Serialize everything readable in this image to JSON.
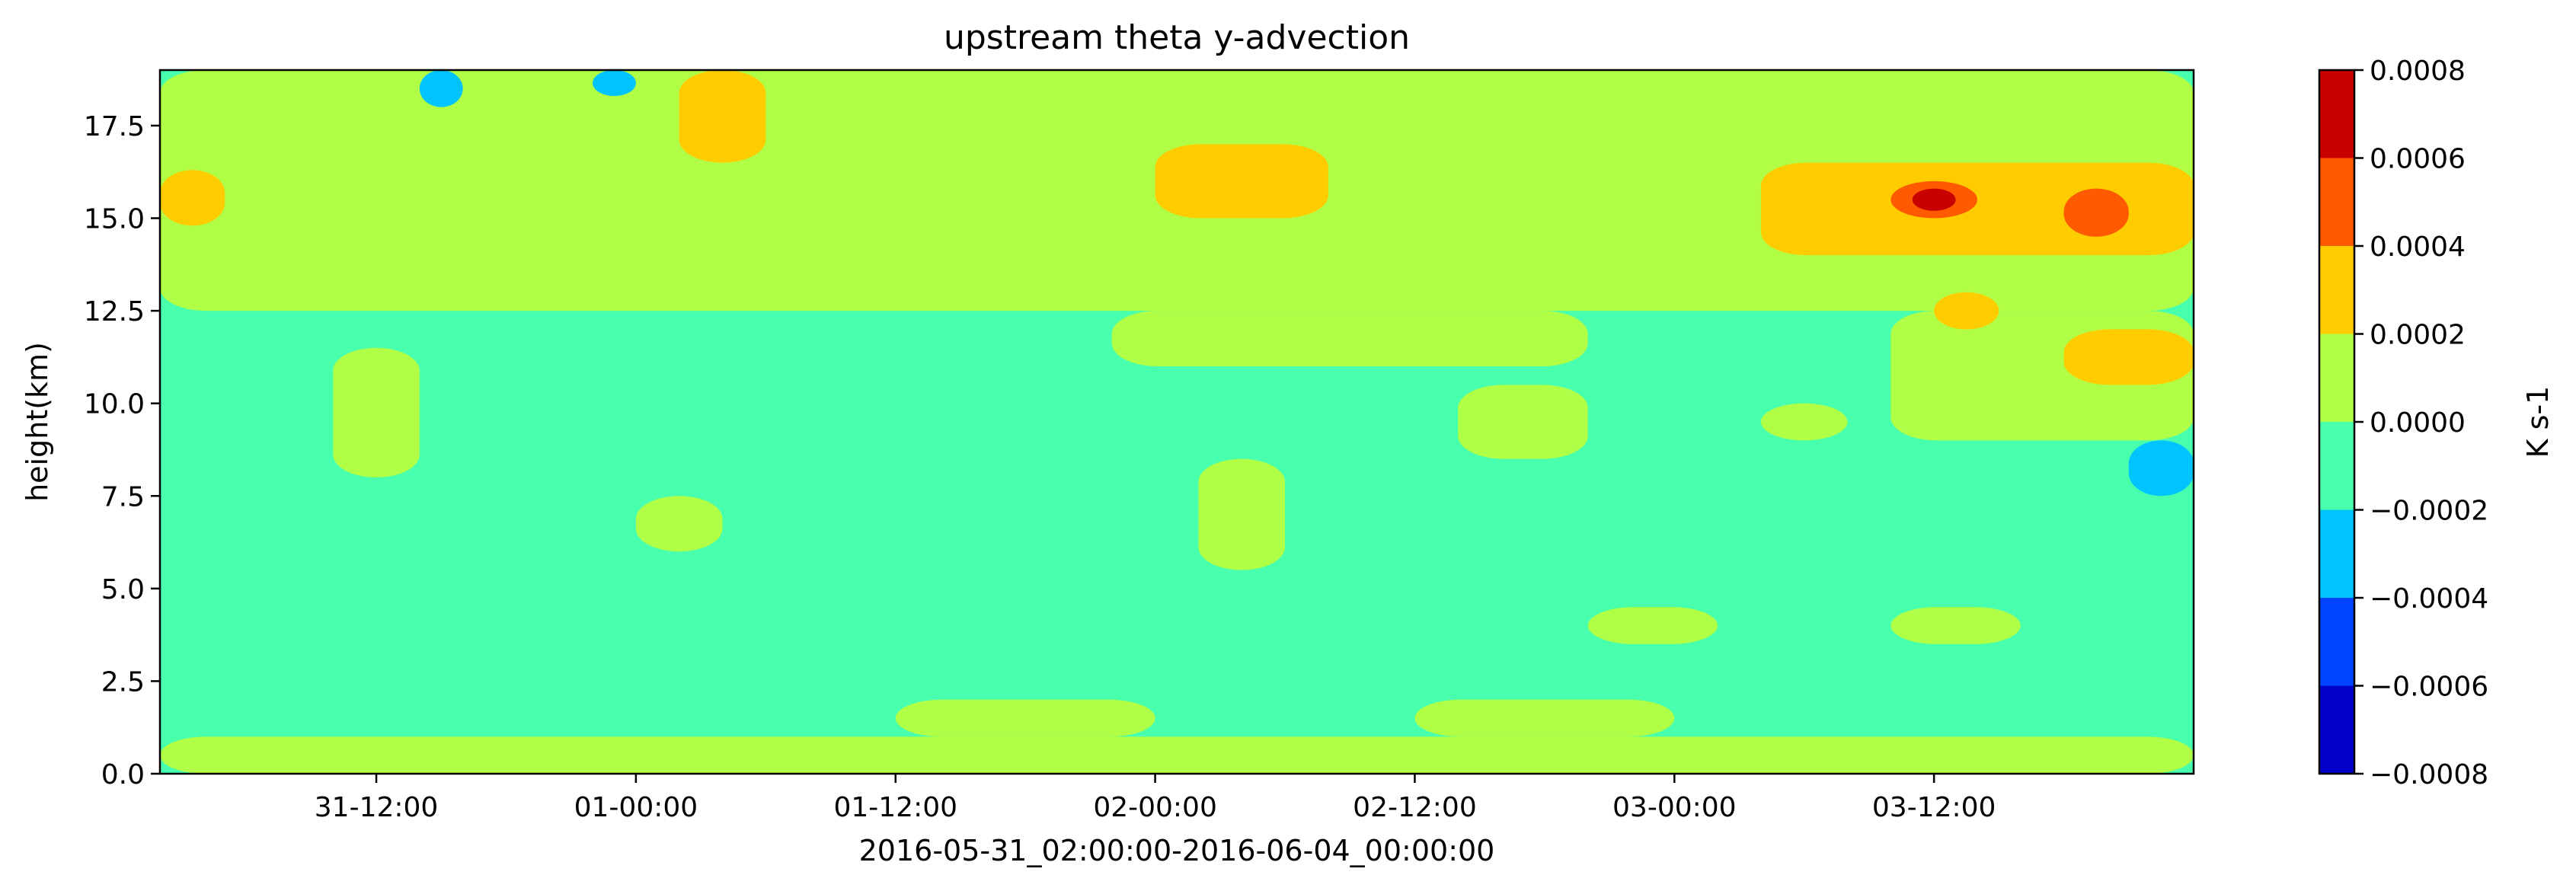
{
  "chart_data": {
    "type": "heatmap",
    "subtype": "filled-contour",
    "title": "upstream theta y-advection",
    "xlabel": "2016-05-31_02:00:00-2016-06-04_00:00:00",
    "ylabel": "height(km)",
    "x_range": [
      "2016-05-31 02:00",
      "2016-06-04 00:00"
    ],
    "ylim": [
      0.0,
      19.0
    ],
    "x_ticks": [
      "31-12:00",
      "01-00:00",
      "01-12:00",
      "02-00:00",
      "02-12:00",
      "03-00:00",
      "03-12:00"
    ],
    "x_tick_times": [
      "2016-05-31 12:00",
      "2016-06-01 00:00",
      "2016-06-01 12:00",
      "2016-06-02 00:00",
      "2016-06-02 12:00",
      "2016-06-03 00:00",
      "2016-06-03 12:00"
    ],
    "y_ticks": [
      "0.0",
      "2.5",
      "5.0",
      "7.5",
      "10.0",
      "12.5",
      "15.0",
      "17.5"
    ],
    "y_tick_values": [
      0.0,
      2.5,
      5.0,
      7.5,
      10.0,
      12.5,
      15.0,
      17.5
    ],
    "colorbar": {
      "label": "K s-1",
      "range": [
        -0.0008,
        0.0008
      ],
      "levels": [
        -0.0008,
        -0.0006,
        -0.0004,
        -0.0002,
        0.0,
        0.0002,
        0.0004,
        0.0006,
        0.0008
      ],
      "tick_labels": [
        "−0.0008",
        "−0.0006",
        "−0.0004",
        "−0.0002",
        "0.0000",
        "0.0002",
        "0.0004",
        "0.0006",
        "0.0008"
      ],
      "colors": [
        "#0000c8",
        "#0044ff",
        "#00c4ff",
        "#48ffae",
        "#b0ff46",
        "#ffcc00",
        "#ff5a00",
        "#c80000"
      ]
    },
    "background_value_range": [
      -0.0002,
      0.0
    ],
    "regions": [
      {
        "t": [
          "2016-05-31 02:00",
          "2016-06-04 00:00"
        ],
        "z": [
          0.0,
          1.0
        ],
        "value": 0.0001
      },
      {
        "t": [
          "2016-05-31 02:00",
          "2016-06-04 00:00"
        ],
        "z": [
          12.5,
          19.0
        ],
        "value": 0.0001
      },
      {
        "t": [
          "2016-06-01 22:00",
          "2016-06-02 20:00"
        ],
        "z": [
          11.0,
          12.5
        ],
        "value": 0.0001
      },
      {
        "t": [
          "2016-06-03 10:00",
          "2016-06-04 00:00"
        ],
        "z": [
          9.0,
          12.5
        ],
        "value": 0.0001
      },
      {
        "t": [
          "2016-05-31 10:00",
          "2016-05-31 14:00"
        ],
        "z": [
          8.0,
          11.5
        ],
        "value": 0.0001
      },
      {
        "t": [
          "2016-06-01 00:00",
          "2016-06-01 04:00"
        ],
        "z": [
          6.0,
          7.5
        ],
        "value": 0.0001
      },
      {
        "t": [
          "2016-06-02 02:00",
          "2016-06-02 06:00"
        ],
        "z": [
          5.5,
          8.5
        ],
        "value": 0.0001
      },
      {
        "t": [
          "2016-06-02 14:00",
          "2016-06-02 20:00"
        ],
        "z": [
          8.5,
          10.5
        ],
        "value": 0.0001
      },
      {
        "t": [
          "2016-06-03 04:00",
          "2016-06-03 08:00"
        ],
        "z": [
          9.0,
          10.0
        ],
        "value": 0.0001
      },
      {
        "t": [
          "2016-06-03 10:00",
          "2016-06-03 16:00"
        ],
        "z": [
          3.5,
          4.5
        ],
        "value": 0.0001
      },
      {
        "t": [
          "2016-06-02 20:00",
          "2016-06-03 02:00"
        ],
        "z": [
          3.5,
          4.5
        ],
        "value": 0.0001
      },
      {
        "t": [
          "2016-06-01 12:00",
          "2016-06-02 00:00"
        ],
        "z": [
          1.0,
          2.0
        ],
        "value": 0.0001
      },
      {
        "t": [
          "2016-06-02 12:00",
          "2016-06-03 00:00"
        ],
        "z": [
          1.0,
          2.0
        ],
        "value": 0.0001
      },
      {
        "t": [
          "2016-05-31 02:00",
          "2016-05-31 05:00"
        ],
        "z": [
          14.8,
          16.3
        ],
        "value": 0.0003
      },
      {
        "t": [
          "2016-06-02 00:00",
          "2016-06-02 08:00"
        ],
        "z": [
          15.0,
          17.0
        ],
        "value": 0.0003
      },
      {
        "t": [
          "2016-06-01 02:00",
          "2016-06-01 06:00"
        ],
        "z": [
          16.5,
          19.0
        ],
        "value": 0.0003
      },
      {
        "t": [
          "2016-06-03 04:00",
          "2016-06-04 00:00"
        ],
        "z": [
          14.0,
          16.5
        ],
        "value": 0.0003
      },
      {
        "t": [
          "2016-06-03 12:00",
          "2016-06-03 15:00"
        ],
        "z": [
          12.0,
          13.0
        ],
        "value": 0.0003
      },
      {
        "t": [
          "2016-06-03 18:00",
          "2016-06-04 00:00"
        ],
        "z": [
          10.5,
          12.0
        ],
        "value": 0.0003
      },
      {
        "t": [
          "2016-06-03 10:00",
          "2016-06-03 14:00"
        ],
        "z": [
          15.0,
          16.0
        ],
        "value": 0.0005
      },
      {
        "t": [
          "2016-06-03 18:00",
          "2016-06-03 21:00"
        ],
        "z": [
          14.5,
          15.8
        ],
        "value": 0.0005
      },
      {
        "t": [
          "2016-06-03 11:00",
          "2016-06-03 13:00"
        ],
        "z": [
          15.2,
          15.8
        ],
        "value": 0.0007
      },
      {
        "t": [
          "2016-06-03 21:00",
          "2016-06-04 00:00"
        ],
        "z": [
          7.5,
          9.0
        ],
        "value": -0.0003
      },
      {
        "t": [
          "2016-05-31 14:00",
          "2016-05-31 16:00"
        ],
        "z": [
          18.0,
          19.0
        ],
        "value": -0.0003
      },
      {
        "t": [
          "2016-05-31 22:00",
          "2016-06-01 00:00"
        ],
        "z": [
          18.3,
          19.0
        ],
        "value": -0.0003
      }
    ]
  }
}
